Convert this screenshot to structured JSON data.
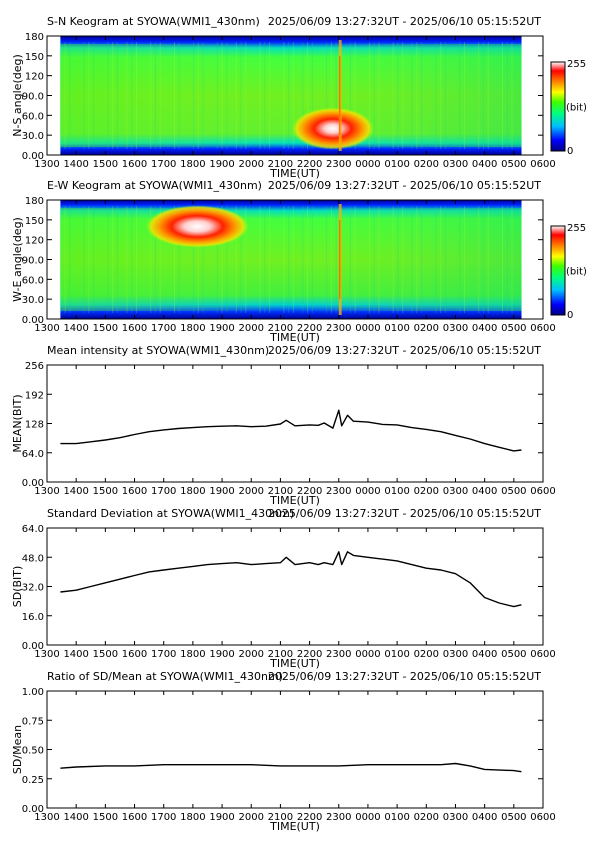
{
  "header_range": "2025/06/09 13:27:32UT - 2025/06/10 05:15:52UT",
  "time_ticks": [
    "1300",
    "1400",
    "1500",
    "1600",
    "1700",
    "1800",
    "1900",
    "2000",
    "2100",
    "2200",
    "2300",
    "0000",
    "0100",
    "0200",
    "0300",
    "0400",
    "0500",
    "0600"
  ],
  "colorbar": {
    "min_label": "0",
    "max_label": "255",
    "unit_label": "(bit)"
  },
  "panels": [
    {
      "title": "S-N Keogram at SYOWA(WMI1_430nm)",
      "ylabel": "N-S angle(deg)",
      "xlabel": "TIME(UT)",
      "yticks": [
        "0.00",
        "30.0",
        "60.0",
        "90.0",
        "120",
        "150",
        "180"
      ]
    },
    {
      "title": "E-W Keogram at SYOWA(WMI1_430nm)",
      "ylabel": "W-E angle(deg)",
      "xlabel": "TIME(UT)",
      "yticks": [
        "0.00",
        "30.0",
        "60.0",
        "90.0",
        "120",
        "150",
        "180"
      ]
    },
    {
      "title": "Mean intensity at SYOWA(WMI1_430nm)",
      "ylabel": "MEAN(BIT)",
      "xlabel": "TIME(UT)",
      "yticks": [
        "0.00",
        "64.0",
        "128",
        "192",
        "256"
      ]
    },
    {
      "title": "Standard Deviation at SYOWA(WMI1_430nm)",
      "ylabel": "SD(BIT)",
      "xlabel": "TIME(UT)",
      "yticks": [
        "0.00",
        "16.0",
        "32.0",
        "48.0",
        "64.0"
      ]
    },
    {
      "title": "Ratio of SD/Mean at SYOWA(WMI1_430nm)",
      "ylabel": "SD/Mean",
      "xlabel": "TIME(UT)",
      "yticks": [
        "0.00",
        "0.25",
        "0.50",
        "0.75",
        "1.00"
      ]
    }
  ],
  "chart_data": [
    {
      "type": "heatmap",
      "title": "S-N Keogram at SYOWA(WMI1_430nm)",
      "xlabel": "TIME(UT)",
      "ylabel": "N-S angle(deg)",
      "xlim_hours": [
        13,
        30
      ],
      "ylim": [
        0,
        180
      ],
      "data_range_hours": [
        13.459,
        29.264
      ],
      "color_scale": [
        "#000080",
        "#0000ff",
        "#00c0ff",
        "#00ff80",
        "#40ff00",
        "#ffff00",
        "#ff8000",
        "#ff0000",
        "#ffffff"
      ],
      "color_range": [
        0,
        255
      ],
      "features": [
        {
          "description": "bright auroral blob",
          "t_hours": [
            21.8,
            23.8
          ],
          "angle_deg": [
            20,
            60
          ],
          "peak_value": 255
        },
        {
          "description": "narrow vertical streak",
          "t_hours": [
            23.0,
            23.1
          ],
          "angle_deg": [
            0,
            180
          ],
          "peak_value": 200
        }
      ]
    },
    {
      "type": "heatmap",
      "title": "E-W Keogram at SYOWA(WMI1_430nm)",
      "xlabel": "TIME(UT)",
      "ylabel": "W-E angle(deg)",
      "xlim_hours": [
        13,
        30
      ],
      "ylim": [
        0,
        180
      ],
      "data_range_hours": [
        13.459,
        29.264
      ],
      "color_scale": [
        "#000080",
        "#0000ff",
        "#00c0ff",
        "#00ff80",
        "#40ff00",
        "#ffff00",
        "#ff8000",
        "#ff0000",
        "#ffffff"
      ],
      "color_range": [
        0,
        255
      ],
      "features": [
        {
          "description": "bright auroral blob",
          "t_hours": [
            16.8,
            19.5
          ],
          "angle_deg": [
            120,
            160
          ],
          "peak_value": 255
        },
        {
          "description": "narrow vertical streak",
          "t_hours": [
            23.0,
            23.1
          ],
          "angle_deg": [
            0,
            180
          ],
          "peak_value": 180
        }
      ]
    },
    {
      "type": "line",
      "title": "Mean intensity at SYOWA(WMI1_430nm)",
      "xlabel": "TIME(UT)",
      "ylabel": "MEAN(BIT)",
      "xlim_hours": [
        13,
        30
      ],
      "ylim": [
        0,
        256
      ],
      "series": [
        {
          "t": [
            13.46,
            14,
            14.5,
            15,
            15.5,
            16,
            16.5,
            17,
            17.5,
            18,
            18.5,
            19,
            19.5,
            20,
            20.5,
            21,
            21.2,
            21.5,
            22,
            22.3,
            22.5,
            22.8,
            23,
            23.1,
            23.3,
            23.5,
            24,
            24.5,
            25,
            25.5,
            26,
            26.5,
            27,
            27.5,
            28,
            28.5,
            29,
            29.26
          ],
          "values": [
            84,
            84,
            88,
            92,
            97,
            104,
            110,
            114,
            117,
            119,
            121,
            122,
            123,
            121,
            122,
            127,
            135,
            123,
            125,
            124,
            129,
            118,
            157,
            123,
            146,
            133,
            131,
            126,
            125,
            119,
            115,
            110,
            102,
            94,
            84,
            76,
            68,
            70
          ]
        }
      ]
    },
    {
      "type": "line",
      "title": "Standard Deviation at SYOWA(WMI1_430nm)",
      "xlabel": "TIME(UT)",
      "ylabel": "SD(BIT)",
      "xlim_hours": [
        13,
        30
      ],
      "ylim": [
        0,
        64
      ],
      "series": [
        {
          "t": [
            13.46,
            14,
            14.5,
            15,
            15.5,
            16,
            16.5,
            17,
            17.5,
            18,
            18.5,
            19,
            19.5,
            20,
            20.5,
            21,
            21.2,
            21.5,
            22,
            22.3,
            22.5,
            22.8,
            23,
            23.1,
            23.3,
            23.5,
            24,
            24.5,
            25,
            25.5,
            26,
            26.5,
            27,
            27.5,
            28,
            28.5,
            29,
            29.26
          ],
          "values": [
            29,
            30,
            32,
            34,
            36,
            38,
            40,
            41,
            42,
            43,
            44,
            44.5,
            45,
            44,
            44.5,
            45,
            48,
            44,
            45,
            44,
            45,
            44,
            51,
            44,
            51,
            49,
            48,
            47,
            46,
            44,
            42,
            41,
            39,
            34,
            26,
            23,
            21,
            22
          ]
        }
      ]
    },
    {
      "type": "line",
      "title": "Ratio of SD/Mean at SYOWA(WMI1_430nm)",
      "xlabel": "TIME(UT)",
      "ylabel": "SD/Mean",
      "xlim_hours": [
        13,
        30
      ],
      "ylim": [
        0,
        1
      ],
      "series": [
        {
          "t": [
            13.46,
            14,
            15,
            16,
            17,
            18,
            19,
            20,
            21,
            22,
            23,
            24,
            25,
            26,
            26.5,
            27,
            27.5,
            28,
            29,
            29.26
          ],
          "values": [
            0.34,
            0.35,
            0.36,
            0.36,
            0.37,
            0.37,
            0.37,
            0.37,
            0.36,
            0.36,
            0.36,
            0.37,
            0.37,
            0.37,
            0.37,
            0.38,
            0.36,
            0.33,
            0.32,
            0.31
          ]
        }
      ]
    }
  ]
}
